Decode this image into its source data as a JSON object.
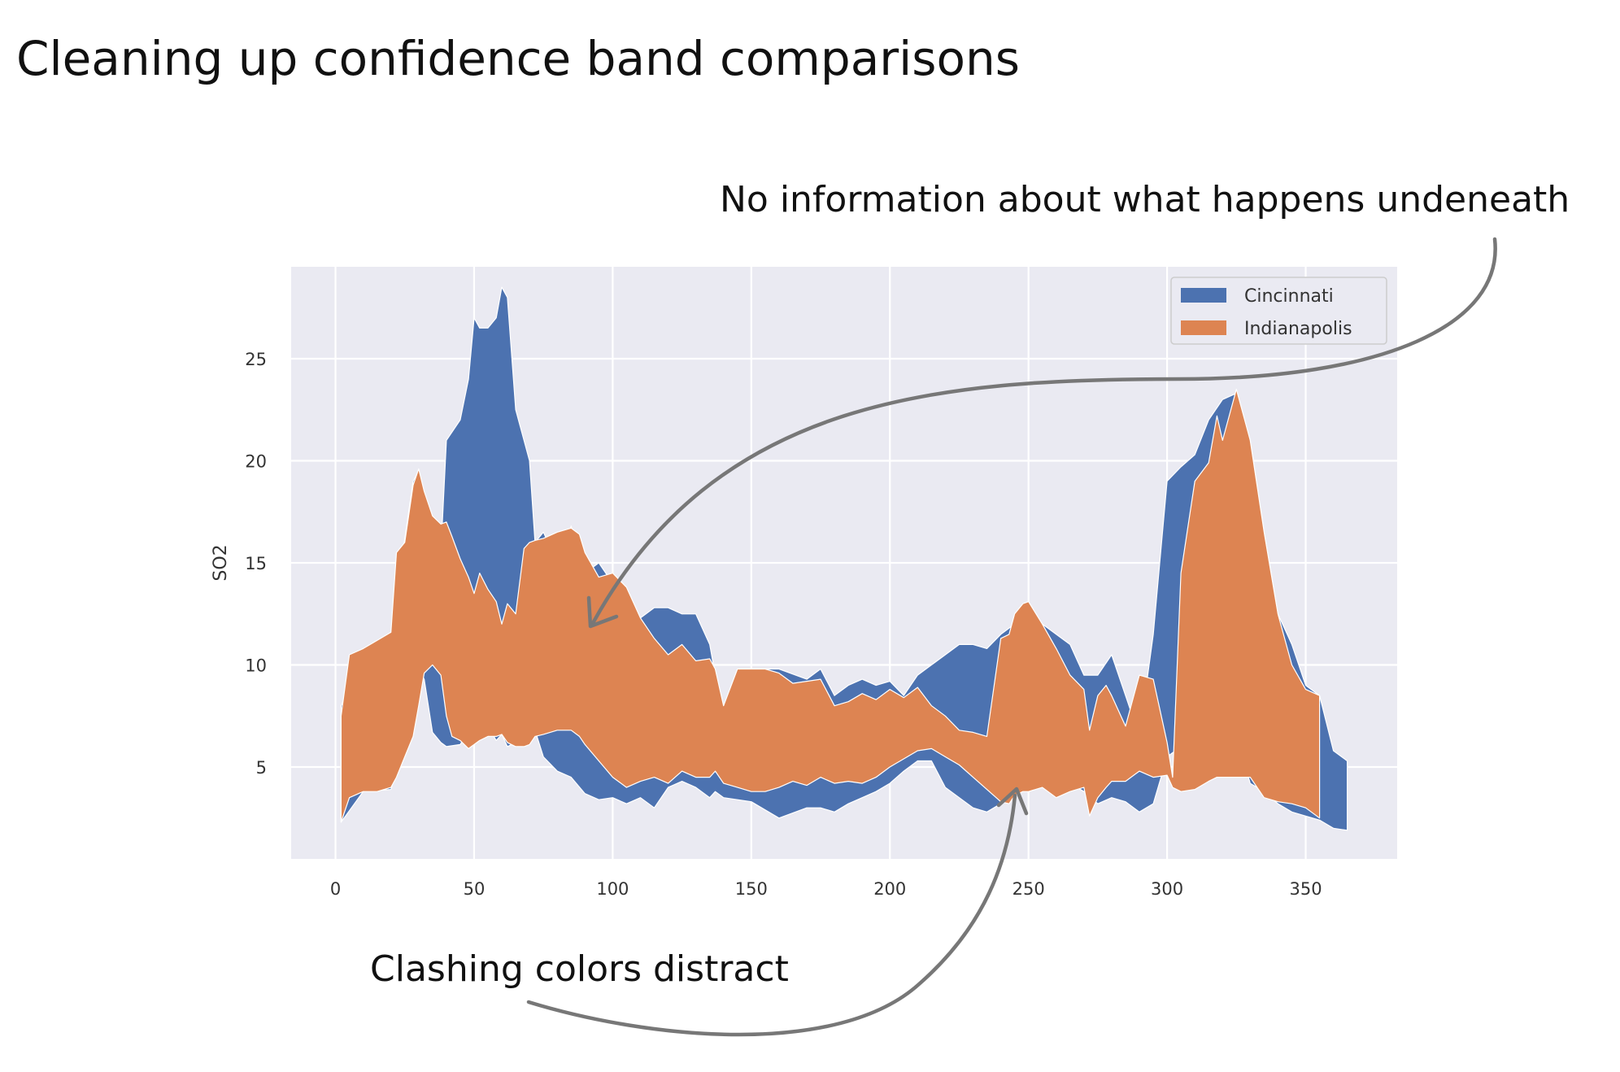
{
  "slide": {
    "title": "Cleaning up confidence band comparisons",
    "annotations": {
      "top": "No information about what happens undeneath",
      "bottom": "Clashing colors distract"
    }
  },
  "colors": {
    "plot_bg": "#eaeaf2",
    "grid": "#ffffff",
    "cincinnati": "#4c72b0",
    "indianapolis": "#dd8452",
    "arrow": "#777777"
  },
  "chart_data": {
    "type": "area",
    "title": "",
    "xlabel": "",
    "ylabel": "SO2",
    "xlim": [
      -16,
      383
    ],
    "ylim": [
      0.5,
      29.5
    ],
    "xticks": [
      0,
      50,
      100,
      150,
      200,
      250,
      300,
      350
    ],
    "yticks": [
      5,
      10,
      15,
      20,
      25
    ],
    "grid": true,
    "legend_position": "top-right",
    "series": [
      {
        "name": "Cincinnati",
        "kind": "confidence_band",
        "color": "#4c72b0",
        "x": [
          2,
          10,
          20,
          28,
          30,
          32,
          35,
          38,
          40,
          45,
          48,
          50,
          52,
          55,
          58,
          60,
          62,
          65,
          68,
          70,
          72,
          75,
          80,
          85,
          90,
          95,
          100,
          105,
          110,
          115,
          120,
          125,
          130,
          135,
          137,
          140,
          150,
          160,
          170,
          175,
          180,
          185,
          190,
          195,
          200,
          205,
          210,
          215,
          220,
          225,
          230,
          235,
          240,
          245,
          250,
          255,
          260,
          265,
          270,
          275,
          280,
          285,
          290,
          295,
          300,
          305,
          310,
          315,
          320,
          325,
          330,
          335,
          340,
          345,
          350,
          355,
          360,
          365
        ],
        "upper": [
          8,
          10.5,
          11.5,
          19,
          19.5,
          17,
          16,
          15.5,
          21,
          22,
          24,
          27,
          26.5,
          26.5,
          27,
          28.5,
          28,
          22.5,
          21,
          20,
          16,
          16.5,
          15,
          16.8,
          14.5,
          15,
          14,
          13,
          12.3,
          12.8,
          12.8,
          12.5,
          12.5,
          11,
          9.5,
          6.5,
          9.8,
          9.8,
          9.3,
          9.8,
          8.5,
          9.0,
          9.3,
          9.0,
          9.2,
          8.5,
          9.5,
          10,
          10.5,
          11,
          11,
          10.8,
          11.5,
          12,
          13,
          12,
          11.5,
          11,
          9.5,
          9.5,
          10.5,
          8.5,
          6.5,
          11.5,
          19,
          19.7,
          20.3,
          22,
          23,
          23.3,
          21,
          16.5,
          12.5,
          11,
          9,
          8.5,
          5.8,
          5.3
        ],
        "lower": [
          2.3,
          3.8,
          3.9,
          7.5,
          9.8,
          9.3,
          6.7,
          6.2,
          6.0,
          6.1,
          6.8,
          6.2,
          6.5,
          7.0,
          6.3,
          6.6,
          6.0,
          6.2,
          6.5,
          6.5,
          6.8,
          5.5,
          4.8,
          4.5,
          3.7,
          3.4,
          3.5,
          3.2,
          3.5,
          3.0,
          4.0,
          4.3,
          4.0,
          3.5,
          3.8,
          3.5,
          3.3,
          2.5,
          3.0,
          3.0,
          2.8,
          3.2,
          3.5,
          3.8,
          4.2,
          4.8,
          5.3,
          5.3,
          4.0,
          3.5,
          3.0,
          2.8,
          3.2,
          3.6,
          4.3,
          4.5,
          4.0,
          4.2,
          3.8,
          3.2,
          3.5,
          3.3,
          2.8,
          3.2,
          5.5,
          6.0,
          6.5,
          6.8,
          7.0,
          6.5,
          4.2,
          3.8,
          3.2,
          2.8,
          2.6,
          2.4,
          2.0,
          1.9
        ]
      },
      {
        "name": "Indianapolis",
        "kind": "confidence_band",
        "color": "#dd8452",
        "x": [
          2,
          5,
          10,
          15,
          20,
          22,
          25,
          28,
          30,
          32,
          35,
          38,
          40,
          42,
          45,
          48,
          50,
          52,
          55,
          58,
          60,
          62,
          65,
          68,
          70,
          72,
          75,
          80,
          85,
          88,
          90,
          95,
          100,
          105,
          110,
          115,
          120,
          125,
          130,
          135,
          137,
          140,
          145,
          150,
          155,
          160,
          165,
          170,
          175,
          180,
          185,
          190,
          195,
          200,
          205,
          210,
          215,
          220,
          225,
          230,
          235,
          240,
          243,
          245,
          248,
          250,
          255,
          260,
          265,
          270,
          272,
          275,
          278,
          280,
          285,
          290,
          295,
          300,
          302,
          305,
          310,
          315,
          318,
          320,
          325,
          330,
          335,
          340,
          345,
          350,
          355
        ],
        "upper": [
          7.5,
          10.5,
          10.8,
          11.2,
          11.6,
          15.5,
          16,
          18.8,
          19.6,
          18.5,
          17.3,
          16.9,
          17,
          16.3,
          15.2,
          14.3,
          13.5,
          14.5,
          13.7,
          13.1,
          12.0,
          13.0,
          12.5,
          15.7,
          16.0,
          16.1,
          16.2,
          16.5,
          16.7,
          16.4,
          15.5,
          14.3,
          14.5,
          13.8,
          12.3,
          11.3,
          10.5,
          11.0,
          10.2,
          10.3,
          9.8,
          8.0,
          9.8,
          9.8,
          9.8,
          9.6,
          9.1,
          9.2,
          9.3,
          8.0,
          8.2,
          8.6,
          8.3,
          8.8,
          8.4,
          8.9,
          8.0,
          7.5,
          6.8,
          6.7,
          6.5,
          11.3,
          11.5,
          12.5,
          13.0,
          13.1,
          12.0,
          10.8,
          9.5,
          8.8,
          6.8,
          8.5,
          9.0,
          8.5,
          7.0,
          9.5,
          9.3,
          6.2,
          4.5,
          14.5,
          19.0,
          19.9,
          22.2,
          21.0,
          23.5,
          21.0,
          16.5,
          12.5,
          10.0,
          8.8,
          8.5
        ],
        "lower": [
          2.3,
          3.5,
          3.8,
          3.8,
          4.0,
          4.5,
          5.5,
          6.5,
          8.0,
          9.6,
          10.0,
          9.5,
          7.5,
          6.5,
          6.3,
          5.9,
          6.1,
          6.3,
          6.5,
          6.5,
          6.6,
          6.2,
          6.0,
          6.0,
          6.1,
          6.5,
          6.6,
          6.8,
          6.8,
          6.5,
          6.1,
          5.3,
          4.5,
          4.0,
          4.3,
          4.5,
          4.2,
          4.8,
          4.5,
          4.5,
          4.8,
          4.2,
          4.0,
          3.8,
          3.8,
          4.0,
          4.3,
          4.1,
          4.5,
          4.2,
          4.3,
          4.2,
          4.5,
          5.0,
          5.4,
          5.8,
          5.9,
          5.5,
          5.1,
          4.5,
          3.9,
          3.3,
          3.2,
          3.6,
          3.8,
          3.8,
          4.0,
          3.5,
          3.8,
          4.0,
          2.6,
          3.5,
          4.0,
          4.3,
          4.3,
          4.8,
          4.5,
          4.6,
          4.0,
          3.8,
          3.9,
          4.3,
          4.5,
          4.5,
          4.5,
          4.5,
          3.5,
          3.3,
          3.2,
          3.0,
          2.5
        ]
      }
    ]
  }
}
